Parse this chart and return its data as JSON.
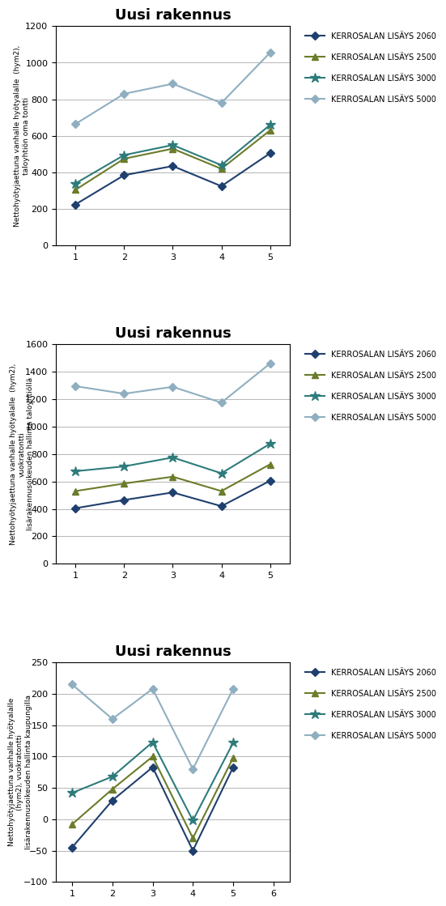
{
  "title": "Uusi rakennus",
  "legend_labels": [
    "KERROSALAN LISÄYS 2060",
    "KERROSALAN LISÄYS 2500",
    "KERROSALAN LISÄYS 3000",
    "KERROSALAN LISÄYS 5000"
  ],
  "colors": [
    "#1f3f6e",
    "#6b7c2a",
    "#2e7b7b",
    "#8fafc0"
  ],
  "markers": [
    "D",
    "^",
    "*",
    "D"
  ],
  "marker_sizes": [
    5,
    6,
    9,
    5
  ],
  "chart1": {
    "ylabel": "Nettohyötyjaettuna vanhalle hyötyalalle  (hym2),\ntaloyhtiön oma tontti",
    "xlim": [
      0.6,
      5.4
    ],
    "ylim": [
      0,
      1200
    ],
    "yticks": [
      0,
      200,
      400,
      600,
      800,
      1000,
      1200
    ],
    "xticks": [
      1,
      2,
      3,
      4,
      5
    ],
    "series": {
      "2060": [
        225,
        385,
        435,
        325,
        505
      ],
      "2500": [
        305,
        475,
        530,
        420,
        630
      ],
      "3000": [
        340,
        495,
        550,
        440,
        660
      ],
      "5000": [
        665,
        830,
        885,
        780,
        1055
      ]
    }
  },
  "chart2": {
    "ylabel": "Nettohyötyjaettuna vanhalle hyötyalalle  (hym2),\nvuokratontti\nlisärakennusoikeuden hallinta taloyhtioillä",
    "xlim": [
      0.6,
      5.4
    ],
    "ylim": [
      0,
      1600
    ],
    "yticks": [
      0,
      200,
      400,
      600,
      800,
      1000,
      1200,
      1400,
      1600
    ],
    "xticks": [
      1,
      2,
      3,
      4,
      5
    ],
    "series": {
      "2060": [
        405,
        465,
        520,
        420,
        605
      ],
      "2500": [
        530,
        585,
        635,
        530,
        725
      ],
      "3000": [
        675,
        710,
        775,
        660,
        875
      ],
      "5000": [
        1295,
        1240,
        1290,
        1175,
        1460
      ]
    }
  },
  "chart3": {
    "ylabel": "Nettohyötyjaettuna vanhalle hyötyalalle\n(hym2), vuokratontti\nlisärakennusoikeuden hallinta kaupungilla",
    "xlim": [
      0.6,
      6.4
    ],
    "ylim": [
      -100,
      250
    ],
    "yticks": [
      -100,
      -50,
      0,
      50,
      100,
      150,
      200,
      250
    ],
    "xticks": [
      1,
      2,
      3,
      4,
      5,
      6
    ],
    "series": {
      "2060": [
        -45,
        30,
        83,
        -50,
        83,
        null
      ],
      "2500": [
        -8,
        48,
        100,
        -30,
        98,
        null
      ],
      "3000": [
        42,
        68,
        123,
        -2,
        122,
        null
      ],
      "5000": [
        215,
        160,
        208,
        80,
        208,
        null
      ]
    }
  }
}
